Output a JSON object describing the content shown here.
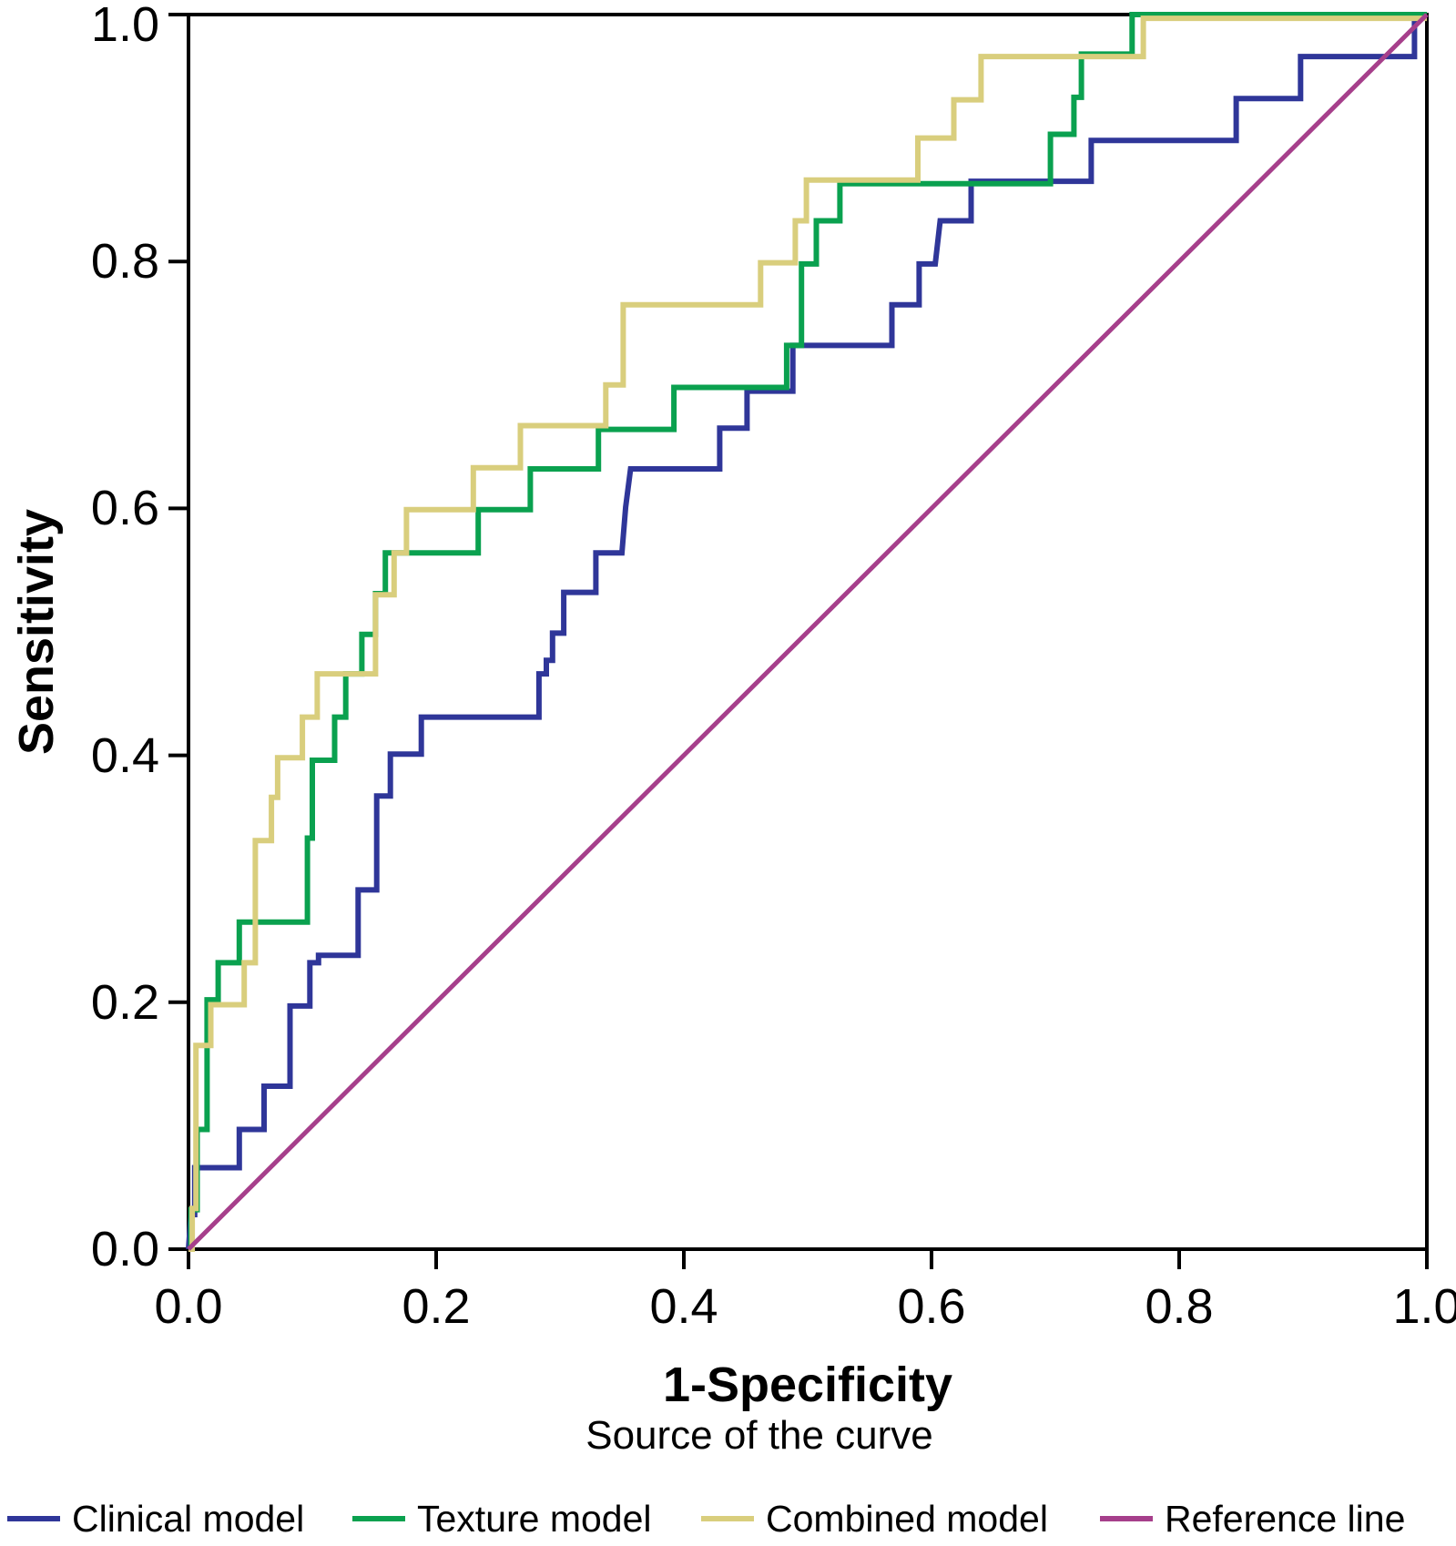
{
  "figure": {
    "background": "#ffffff",
    "frame_color": "#000000"
  },
  "chart_data": {
    "type": "line",
    "subtype": "roc-step-curves",
    "title": "",
    "xlabel": "1-Specificity",
    "ylabel": "Sensitivity",
    "xlim": [
      0,
      1
    ],
    "ylim": [
      0,
      1
    ],
    "grid": false,
    "x_tick_labels": [
      "0.0",
      "0.2",
      "0.4",
      "0.6",
      "0.8",
      "1.0"
    ],
    "y_tick_labels": [
      "0.0",
      "0.2",
      "0.4",
      "0.6",
      "0.8",
      "1.0"
    ],
    "legend_title": "Source of the curve",
    "legend_position": "bottom",
    "axis_color": "#000000",
    "series": [
      {
        "name": "Clinical model",
        "color": "#2F3699",
        "stroke_width": 6,
        "points": [
          [
            0,
            0
          ],
          [
            0.002,
            0.028
          ],
          [
            0.005,
            0.028
          ],
          [
            0.005,
            0.066
          ],
          [
            0.041,
            0.066
          ],
          [
            0.041,
            0.097
          ],
          [
            0.061,
            0.097
          ],
          [
            0.061,
            0.132
          ],
          [
            0.082,
            0.132
          ],
          [
            0.082,
            0.197
          ],
          [
            0.098,
            0.197
          ],
          [
            0.098,
            0.232
          ],
          [
            0.105,
            0.232
          ],
          [
            0.105,
            0.238
          ],
          [
            0.137,
            0.238
          ],
          [
            0.137,
            0.291
          ],
          [
            0.152,
            0.291
          ],
          [
            0.152,
            0.367
          ],
          [
            0.163,
            0.367
          ],
          [
            0.163,
            0.401
          ],
          [
            0.188,
            0.401
          ],
          [
            0.188,
            0.431
          ],
          [
            0.283,
            0.431
          ],
          [
            0.283,
            0.466
          ],
          [
            0.289,
            0.466
          ],
          [
            0.289,
            0.477
          ],
          [
            0.294,
            0.477
          ],
          [
            0.294,
            0.499
          ],
          [
            0.303,
            0.499
          ],
          [
            0.303,
            0.532
          ],
          [
            0.329,
            0.532
          ],
          [
            0.329,
            0.564
          ],
          [
            0.35,
            0.564
          ],
          [
            0.353,
            0.601
          ],
          [
            0.357,
            0.632
          ],
          [
            0.429,
            0.632
          ],
          [
            0.429,
            0.665
          ],
          [
            0.451,
            0.665
          ],
          [
            0.451,
            0.695
          ],
          [
            0.488,
            0.695
          ],
          [
            0.488,
            0.732
          ],
          [
            0.568,
            0.732
          ],
          [
            0.568,
            0.765
          ],
          [
            0.59,
            0.765
          ],
          [
            0.59,
            0.798
          ],
          [
            0.603,
            0.798
          ],
          [
            0.607,
            0.833
          ],
          [
            0.632,
            0.833
          ],
          [
            0.632,
            0.865
          ],
          [
            0.729,
            0.865
          ],
          [
            0.729,
            0.898
          ],
          [
            0.846,
            0.898
          ],
          [
            0.846,
            0.932
          ],
          [
            0.898,
            0.932
          ],
          [
            0.898,
            0.966
          ],
          [
            0.99,
            0.966
          ],
          [
            0.99,
            1.0
          ],
          [
            1.0,
            1.0
          ]
        ]
      },
      {
        "name": "Texture model",
        "color": "#0AA14F",
        "stroke_width": 6,
        "points": [
          [
            0,
            0
          ],
          [
            0.002,
            0
          ],
          [
            0.002,
            0.032
          ],
          [
            0.007,
            0.032
          ],
          [
            0.007,
            0.097
          ],
          [
            0.015,
            0.097
          ],
          [
            0.015,
            0.202
          ],
          [
            0.024,
            0.202
          ],
          [
            0.024,
            0.232
          ],
          [
            0.041,
            0.232
          ],
          [
            0.041,
            0.265
          ],
          [
            0.096,
            0.265
          ],
          [
            0.096,
            0.333
          ],
          [
            0.1,
            0.333
          ],
          [
            0.1,
            0.396
          ],
          [
            0.118,
            0.396
          ],
          [
            0.118,
            0.431
          ],
          [
            0.127,
            0.431
          ],
          [
            0.127,
            0.466
          ],
          [
            0.14,
            0.466
          ],
          [
            0.14,
            0.498
          ],
          [
            0.151,
            0.498
          ],
          [
            0.151,
            0.531
          ],
          [
            0.159,
            0.531
          ],
          [
            0.159,
            0.564
          ],
          [
            0.234,
            0.564
          ],
          [
            0.234,
            0.599
          ],
          [
            0.276,
            0.599
          ],
          [
            0.276,
            0.632
          ],
          [
            0.331,
            0.632
          ],
          [
            0.331,
            0.664
          ],
          [
            0.392,
            0.664
          ],
          [
            0.392,
            0.698
          ],
          [
            0.483,
            0.698
          ],
          [
            0.483,
            0.732
          ],
          [
            0.495,
            0.732
          ],
          [
            0.495,
            0.798
          ],
          [
            0.507,
            0.798
          ],
          [
            0.507,
            0.833
          ],
          [
            0.526,
            0.833
          ],
          [
            0.526,
            0.863
          ],
          [
            0.696,
            0.863
          ],
          [
            0.696,
            0.903
          ],
          [
            0.715,
            0.903
          ],
          [
            0.715,
            0.933
          ],
          [
            0.721,
            0.933
          ],
          [
            0.721,
            0.968
          ],
          [
            0.762,
            0.968
          ],
          [
            0.762,
            1.0
          ],
          [
            1.0,
            1.0
          ]
        ]
      },
      {
        "name": "Combined model",
        "color": "#D9CE7D",
        "stroke_width": 6,
        "points": [
          [
            0,
            0
          ],
          [
            0.003,
            0
          ],
          [
            0.003,
            0.033
          ],
          [
            0.006,
            0.033
          ],
          [
            0.006,
            0.165
          ],
          [
            0.018,
            0.165
          ],
          [
            0.018,
            0.198
          ],
          [
            0.045,
            0.198
          ],
          [
            0.045,
            0.232
          ],
          [
            0.054,
            0.232
          ],
          [
            0.054,
            0.331
          ],
          [
            0.067,
            0.331
          ],
          [
            0.067,
            0.366
          ],
          [
            0.072,
            0.366
          ],
          [
            0.072,
            0.398
          ],
          [
            0.092,
            0.398
          ],
          [
            0.092,
            0.431
          ],
          [
            0.104,
            0.431
          ],
          [
            0.104,
            0.466
          ],
          [
            0.151,
            0.466
          ],
          [
            0.151,
            0.53
          ],
          [
            0.166,
            0.53
          ],
          [
            0.166,
            0.564
          ],
          [
            0.176,
            0.564
          ],
          [
            0.176,
            0.599
          ],
          [
            0.23,
            0.599
          ],
          [
            0.23,
            0.633
          ],
          [
            0.268,
            0.633
          ],
          [
            0.268,
            0.667
          ],
          [
            0.337,
            0.667
          ],
          [
            0.337,
            0.7
          ],
          [
            0.351,
            0.7
          ],
          [
            0.351,
            0.765
          ],
          [
            0.462,
            0.765
          ],
          [
            0.462,
            0.799
          ],
          [
            0.49,
            0.799
          ],
          [
            0.49,
            0.833
          ],
          [
            0.499,
            0.833
          ],
          [
            0.499,
            0.866
          ],
          [
            0.589,
            0.866
          ],
          [
            0.589,
            0.9
          ],
          [
            0.618,
            0.9
          ],
          [
            0.618,
            0.931
          ],
          [
            0.64,
            0.931
          ],
          [
            0.64,
            0.966
          ],
          [
            0.771,
            0.966
          ],
          [
            0.771,
            0.997
          ],
          [
            1.0,
            0.997
          ]
        ]
      },
      {
        "name": "Reference line",
        "color": "#A63F8B",
        "stroke_width": 5,
        "points": [
          [
            0,
            0
          ],
          [
            1,
            1
          ]
        ]
      }
    ]
  }
}
